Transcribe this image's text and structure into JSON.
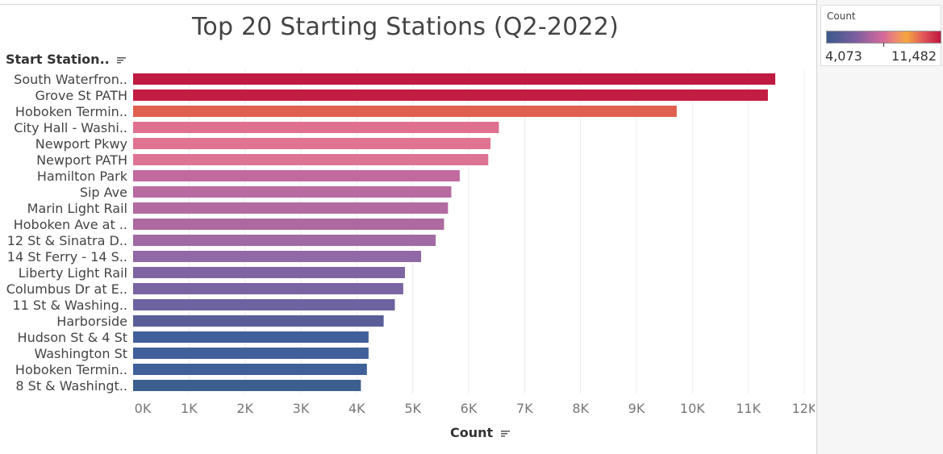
{
  "header": {
    "title": "Top 20 Starting Stations (Q2-2022)",
    "row_header": "Start Station..",
    "x_axis_title": "Count"
  },
  "legend": {
    "title": "Count",
    "min_label": "4,073",
    "max_label": "11,482"
  },
  "colors": {
    "low": "#3d5f8e",
    "mid_purple": "#8868a6",
    "mid_pink": "#d96c92",
    "orange": "#e0604f",
    "high": "#c0173f",
    "gridline": "#ececec",
    "tick_text": "#777777",
    "label_text": "#444444"
  },
  "chart_data": {
    "type": "bar",
    "orientation": "horizontal",
    "title": "Top 20 Starting Stations (Q2-2022)",
    "xlabel": "Count",
    "ylabel": "Start Station..",
    "xlim": [
      0,
      12000
    ],
    "x_ticks": [
      0,
      1000,
      2000,
      3000,
      4000,
      5000,
      6000,
      7000,
      8000,
      9000,
      10000,
      11000,
      12000
    ],
    "x_tick_labels": [
      "0K",
      "1K",
      "2K",
      "3K",
      "4K",
      "5K",
      "6K",
      "7K",
      "8K",
      "9K",
      "10K",
      "11K",
      "12K"
    ],
    "grid": "vertical",
    "legend_position": "top-right",
    "categories": [
      "South Waterfron..",
      "Grove St PATH",
      "Hoboken Termin..",
      "City Hall - Washi..",
      "Newport Pkwy",
      "Newport PATH",
      "Hamilton Park",
      "Sip Ave",
      "Marin Light Rail",
      "Hoboken Ave at ..",
      "12 St & Sinatra D..",
      "14 St Ferry - 14 S..",
      "Liberty Light Rail",
      "Columbus Dr at E..",
      "11 St & Washing..",
      "Harborside",
      "Hudson St & 4 St",
      "Washington St",
      "Hoboken Termin..",
      "8 St & Washingt.."
    ],
    "values": [
      11482,
      11350,
      9720,
      6540,
      6390,
      6350,
      5840,
      5690,
      5630,
      5560,
      5410,
      5150,
      4860,
      4830,
      4680,
      4480,
      4210,
      4210,
      4180,
      4073
    ],
    "bar_colors": [
      "#bf1a41",
      "#c21d42",
      "#e0604f",
      "#e07090",
      "#df7391",
      "#dd7493",
      "#c06aa0",
      "#b86ba0",
      "#b26ba0",
      "#ac6aa0",
      "#a06aa3",
      "#9168a6",
      "#7e65a2",
      "#7b64a2",
      "#6d63a0",
      "#5a5e98",
      "#41609a",
      "#41609a",
      "#40609a",
      "#3d5f8e"
    ]
  }
}
